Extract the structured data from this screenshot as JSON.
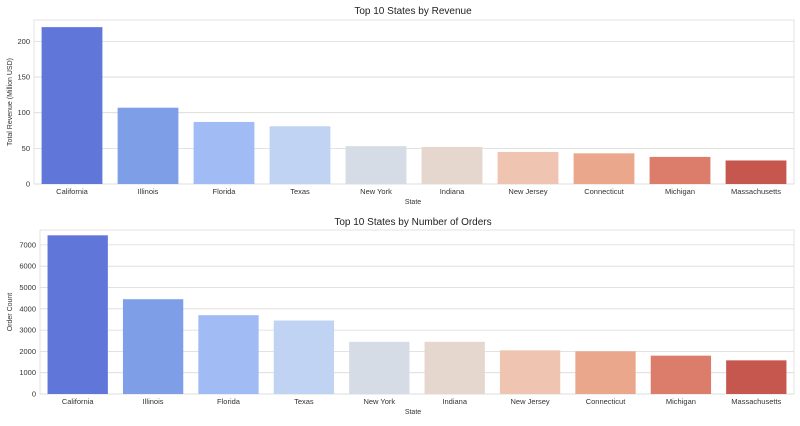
{
  "chart_data": [
    {
      "type": "bar",
      "title": "Top 10 States by Revenue",
      "xlabel": "State",
      "ylabel": "Total Revenue (Million USD)",
      "ylim": [
        0,
        230
      ],
      "yticks": [
        0,
        50,
        100,
        150,
        200
      ],
      "grid": true,
      "categories": [
        "California",
        "Illinois",
        "Florida",
        "Texas",
        "New York",
        "Indiana",
        "New Jersey",
        "Connecticut",
        "Michigan",
        "Massachusetts"
      ],
      "values": [
        220,
        107,
        87,
        81,
        53,
        52,
        45,
        43,
        38,
        33
      ],
      "colors": [
        "#6076d8",
        "#7f9ee8",
        "#a1bbf5",
        "#c0d3f3",
        "#d6dce5",
        "#e5d6ce",
        "#efc4b0",
        "#eaa78c",
        "#dc7d6b",
        "#c6574f"
      ]
    },
    {
      "type": "bar",
      "title": "Top 10 States by Number of Orders",
      "xlabel": "State",
      "ylabel": "Order Count",
      "ylim": [
        0,
        7700
      ],
      "yticks": [
        0,
        1000,
        2000,
        3000,
        4000,
        5000,
        6000,
        7000
      ],
      "grid": true,
      "categories": [
        "California",
        "Illinois",
        "Florida",
        "Texas",
        "New York",
        "Indiana",
        "New Jersey",
        "Connecticut",
        "Michigan",
        "Massachusetts"
      ],
      "values": [
        7450,
        4450,
        3700,
        3450,
        2450,
        2450,
        2050,
        2000,
        1800,
        1580
      ],
      "colors": [
        "#6076d8",
        "#7f9ee8",
        "#a1bbf5",
        "#c0d3f3",
        "#d6dce5",
        "#e5d6ce",
        "#efc4b0",
        "#eaa78c",
        "#dc7d6b",
        "#c6574f"
      ]
    }
  ]
}
